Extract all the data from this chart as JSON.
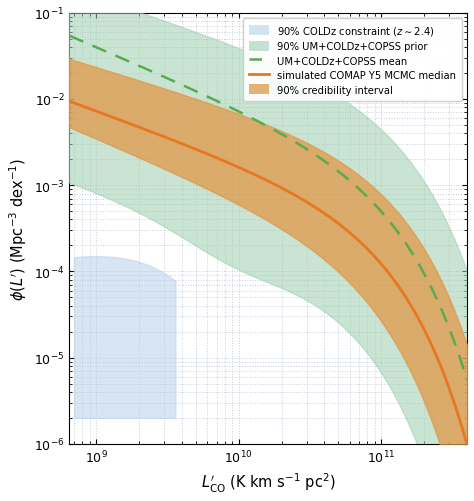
{
  "xlim": [
    650000000.0,
    400000000000.0
  ],
  "ylim": [
    1e-06,
    0.1
  ],
  "xlabel": "$L^{\\prime}_{\\rm CO}$ (K km s$^{-1}$ pc$^{2}$)",
  "ylabel": "$\\phi(L^{\\prime})$ (Mpc$^{-3}$ dex$^{-1}$)",
  "legend_entries": [
    "90% COLDz constraint ($z \\sim 2.4$)",
    "90% UM+COLDz+COPSS prior",
    "UM+COLDz+COPSS mean",
    "simulated COMAP Y5 MCMC median",
    "90% credibility interval"
  ],
  "coldz_color": "#b8d0e8",
  "prior_color": "#9ecfb0",
  "mean_color": "#5aaa50",
  "median_color": "#e87820",
  "credibility_color": "#e09848",
  "background_color": "#ffffff",
  "grid_color": "#c0c8d8"
}
